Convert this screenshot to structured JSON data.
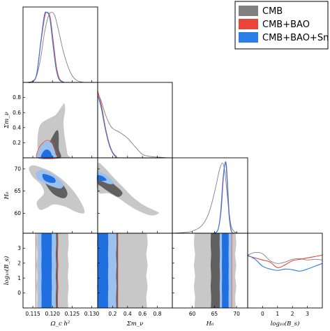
{
  "chart_data": {
    "type": "triangle-corner-plot",
    "parameters": [
      {
        "id": "omch2",
        "label": "Ω_c h²",
        "ticks": [
          "0.115",
          "0.120",
          "0.125",
          "0.130"
        ],
        "range": [
          0.1125,
          0.1315
        ]
      },
      {
        "id": "mnu",
        "label": "Σm_ν",
        "ticks": [
          "0.2",
          "0.4",
          "0.6",
          "0.8"
        ],
        "range": [
          0.0,
          1.0
        ]
      },
      {
        "id": "H0",
        "label": "H₀",
        "ticks": [
          "60",
          "65",
          "70"
        ],
        "range": [
          55.5,
          72.5
        ]
      },
      {
        "id": "logBs",
        "label": "log₁₀(B_s)",
        "ticks": [
          "0",
          "1",
          "2",
          "3"
        ],
        "range": [
          -1.0,
          4.0
        ]
      }
    ],
    "y_axes": [
      {
        "param": "mnu",
        "label": "Σm_ν",
        "ticks": [
          "0.2",
          "0.4",
          "0.6",
          "0.8"
        ],
        "range": [
          0.0,
          1.0
        ]
      },
      {
        "param": "H0",
        "label": "H₀",
        "ticks": [
          "60",
          "65",
          "70"
        ],
        "range": [
          55.5,
          72.5
        ]
      },
      {
        "param": "logBs",
        "label": "log₁₀(B_s)",
        "ticks": [
          "0",
          "1",
          "2",
          "3"
        ],
        "range": [
          -1.0,
          4.0
        ]
      }
    ],
    "series": [
      {
        "name": "CMB",
        "color": "#808080",
        "fill_68": "#606060",
        "fill_95": "#c8c8c8"
      },
      {
        "name": "CMB+BAO",
        "color": "#e8443a"
      },
      {
        "name": "CMB+BAO+Sn",
        "color": "#2b7ee6",
        "fill_68": "#1f6fe0",
        "fill_95": "#9cc1ee"
      }
    ],
    "marginals": {
      "omch2": {
        "CMB": [
          [
            0.1135,
            0.0
          ],
          [
            0.115,
            0.02
          ],
          [
            0.116,
            0.1
          ],
          [
            0.117,
            0.35
          ],
          [
            0.118,
            0.72
          ],
          [
            0.119,
            0.95
          ],
          [
            0.1198,
            1.0
          ],
          [
            0.1206,
            0.95
          ],
          [
            0.1215,
            0.75
          ],
          [
            0.1225,
            0.5
          ],
          [
            0.1235,
            0.3
          ],
          [
            0.1245,
            0.15
          ],
          [
            0.1255,
            0.06
          ],
          [
            0.1265,
            0.02
          ],
          [
            0.128,
            0.0
          ]
        ],
        "CMB+BAO": [
          [
            0.1135,
            0.0
          ],
          [
            0.115,
            0.01
          ],
          [
            0.116,
            0.12
          ],
          [
            0.117,
            0.55
          ],
          [
            0.118,
            0.93
          ],
          [
            0.1186,
            1.0
          ],
          [
            0.1194,
            0.93
          ],
          [
            0.1202,
            0.58
          ],
          [
            0.121,
            0.22
          ],
          [
            0.1218,
            0.05
          ],
          [
            0.123,
            0.0
          ]
        ],
        "CMB+BAO+Sn": [
          [
            0.1135,
            0.0
          ],
          [
            0.115,
            0.01
          ],
          [
            0.116,
            0.13
          ],
          [
            0.117,
            0.57
          ],
          [
            0.1179,
            0.95
          ],
          [
            0.1185,
            1.0
          ],
          [
            0.1193,
            0.92
          ],
          [
            0.1201,
            0.55
          ],
          [
            0.1209,
            0.2
          ],
          [
            0.1217,
            0.04
          ],
          [
            0.123,
            0.0
          ]
        ]
      },
      "mnu": {
        "CMB": [
          [
            0.0,
            0.93
          ],
          [
            0.05,
            0.8
          ],
          [
            0.1,
            0.63
          ],
          [
            0.15,
            0.5
          ],
          [
            0.2,
            0.42
          ],
          [
            0.3,
            0.36
          ],
          [
            0.4,
            0.28
          ],
          [
            0.5,
            0.16
          ],
          [
            0.6,
            0.05
          ],
          [
            0.7,
            0.02
          ],
          [
            0.8,
            0.01
          ],
          [
            0.95,
            0.0
          ]
        ],
        "CMB+BAO": [
          [
            0.0,
            0.95
          ],
          [
            0.05,
            0.75
          ],
          [
            0.1,
            0.45
          ],
          [
            0.15,
            0.22
          ],
          [
            0.2,
            0.08
          ],
          [
            0.25,
            0.02
          ],
          [
            0.3,
            0.0
          ],
          [
            0.95,
            0.0
          ]
        ],
        "CMB+BAO+Sn": [
          [
            0.0,
            0.9
          ],
          [
            0.05,
            0.7
          ],
          [
            0.1,
            0.42
          ],
          [
            0.15,
            0.2
          ],
          [
            0.2,
            0.07
          ],
          [
            0.25,
            0.01
          ],
          [
            0.3,
            0.0
          ],
          [
            0.95,
            0.0
          ]
        ]
      },
      "H0": {
        "CMB": [
          [
            55.5,
            0.0
          ],
          [
            58,
            0.01
          ],
          [
            60,
            0.03
          ],
          [
            62,
            0.1
          ],
          [
            63.5,
            0.25
          ],
          [
            64.5,
            0.45
          ],
          [
            65.5,
            0.72
          ],
          [
            66.2,
            0.92
          ],
          [
            66.8,
            1.0
          ],
          [
            67.3,
            0.9
          ],
          [
            67.8,
            0.6
          ],
          [
            68.3,
            0.3
          ],
          [
            68.8,
            0.1
          ],
          [
            69.5,
            0.02
          ],
          [
            70.5,
            0.0
          ]
        ],
        "CMB+BAO": [
          [
            64.8,
            0.0
          ],
          [
            65.8,
            0.05
          ],
          [
            66.4,
            0.3
          ],
          [
            66.9,
            0.75
          ],
          [
            67.3,
            0.97
          ],
          [
            67.6,
            0.98
          ],
          [
            67.9,
            0.7
          ],
          [
            68.3,
            0.25
          ],
          [
            68.8,
            0.03
          ],
          [
            69.5,
            0.0
          ]
        ],
        "CMB+BAO+Sn": [
          [
            64.8,
            0.0
          ],
          [
            65.8,
            0.05
          ],
          [
            66.5,
            0.32
          ],
          [
            67.0,
            0.78
          ],
          [
            67.4,
            1.0
          ],
          [
            67.7,
            0.97
          ],
          [
            68.0,
            0.65
          ],
          [
            68.4,
            0.22
          ],
          [
            68.9,
            0.02
          ],
          [
            69.5,
            0.0
          ]
        ]
      },
      "logBs": {
        "CMB": [
          [
            -1.0,
            0.76
          ],
          [
            -0.5,
            0.8
          ],
          [
            0.0,
            0.78
          ],
          [
            0.5,
            0.68
          ],
          [
            1.0,
            0.64
          ],
          [
            1.5,
            0.66
          ],
          [
            2.0,
            0.7
          ],
          [
            2.5,
            0.71
          ],
          [
            3.0,
            0.69
          ],
          [
            3.5,
            0.7
          ],
          [
            4.0,
            0.69
          ]
        ],
        "CMB+BAO": [
          [
            -1.0,
            0.75
          ],
          [
            -0.5,
            0.72
          ],
          [
            0.0,
            0.69
          ],
          [
            0.5,
            0.66
          ],
          [
            1.0,
            0.58
          ],
          [
            1.5,
            0.62
          ],
          [
            2.0,
            0.68
          ],
          [
            2.5,
            0.7
          ],
          [
            3.0,
            0.72
          ],
          [
            3.5,
            0.74
          ],
          [
            4.0,
            0.76
          ]
        ],
        "CMB+BAO+Sn": [
          [
            -1.0,
            0.76
          ],
          [
            -0.5,
            0.7
          ],
          [
            0.0,
            0.6
          ],
          [
            0.5,
            0.56
          ],
          [
            1.0,
            0.54
          ],
          [
            1.5,
            0.56
          ],
          [
            2.0,
            0.55
          ],
          [
            2.5,
            0.53
          ],
          [
            3.0,
            0.56
          ],
          [
            3.5,
            0.6
          ],
          [
            4.0,
            0.64
          ]
        ]
      }
    },
    "contours": [
      {
        "x": "omch2",
        "y": "mnu",
        "CMB_95": [
          [
            0.1165,
            0.0
          ],
          [
            0.1162,
            0.1
          ],
          [
            0.1162,
            0.25
          ],
          [
            0.1165,
            0.38
          ],
          [
            0.1172,
            0.46
          ],
          [
            0.119,
            0.52
          ],
          [
            0.1208,
            0.57
          ],
          [
            0.1222,
            0.67
          ],
          [
            0.123,
            0.72
          ],
          [
            0.1232,
            0.62
          ],
          [
            0.1228,
            0.48
          ],
          [
            0.123,
            0.32
          ],
          [
            0.1234,
            0.18
          ],
          [
            0.1238,
            0.05
          ],
          [
            0.124,
            0.0
          ]
        ],
        "CMB_68": [
          [
            0.1178,
            0.0
          ],
          [
            0.1182,
            0.07
          ],
          [
            0.1188,
            0.16
          ],
          [
            0.1198,
            0.26
          ],
          [
            0.1208,
            0.35
          ],
          [
            0.1214,
            0.36
          ],
          [
            0.1216,
            0.28
          ],
          [
            0.1216,
            0.12
          ],
          [
            0.122,
            0.0
          ]
        ],
        "SN_95": [
          [
            0.1163,
            0.0
          ],
          [
            0.1165,
            0.1
          ],
          [
            0.1172,
            0.17
          ],
          [
            0.1184,
            0.22
          ],
          [
            0.1197,
            0.2
          ],
          [
            0.1204,
            0.12
          ],
          [
            0.1208,
            0.05
          ],
          [
            0.1208,
            0.0
          ]
        ],
        "SN_68": [
          [
            0.1172,
            0.0
          ],
          [
            0.1175,
            0.07
          ],
          [
            0.1184,
            0.11
          ],
          [
            0.1193,
            0.09
          ],
          [
            0.1198,
            0.04
          ],
          [
            0.1198,
            0.0
          ]
        ],
        "BAO_95": [
          [
            0.1162,
            0.0
          ],
          [
            0.1164,
            0.11
          ],
          [
            0.1172,
            0.18
          ],
          [
            0.1185,
            0.23
          ],
          [
            0.1199,
            0.21
          ],
          [
            0.1206,
            0.12
          ],
          [
            0.1209,
            0.0
          ]
        ]
      },
      {
        "x": "omch2",
        "y": "H0",
        "CMB_95": [
          [
            0.114,
            70.0
          ],
          [
            0.115,
            70.8
          ],
          [
            0.1175,
            70.2
          ],
          [
            0.12,
            69.2
          ],
          [
            0.123,
            67.2
          ],
          [
            0.1258,
            64.5
          ],
          [
            0.1278,
            61.5
          ],
          [
            0.128,
            60.0
          ],
          [
            0.126,
            60.3
          ],
          [
            0.1232,
            61.5
          ],
          [
            0.1203,
            62.0
          ],
          [
            0.1185,
            61.2
          ],
          [
            0.1168,
            60.8
          ],
          [
            0.116,
            62.5
          ],
          [
            0.1178,
            64.5
          ],
          [
            0.117,
            66.5
          ],
          [
            0.115,
            68.2
          ]
        ],
        "CMB_68": [
          [
            0.1175,
            69.3
          ],
          [
            0.1193,
            68.7
          ],
          [
            0.1212,
            67.8
          ],
          [
            0.1228,
            66.3
          ],
          [
            0.1238,
            64.5
          ],
          [
            0.123,
            63.4
          ],
          [
            0.121,
            63.9
          ],
          [
            0.1195,
            65.0
          ],
          [
            0.118,
            67.0
          ],
          [
            0.1172,
            68.5
          ]
        ],
        "SN_95": [
          [
            0.1158,
            69.0
          ],
          [
            0.1172,
            69.8
          ],
          [
            0.1192,
            69.2
          ],
          [
            0.1212,
            68.0
          ],
          [
            0.1228,
            66.5
          ],
          [
            0.122,
            65.6
          ],
          [
            0.12,
            66.0
          ],
          [
            0.118,
            66.8
          ],
          [
            0.1162,
            67.8
          ]
        ],
        "SN_68": [
          [
            0.1175,
            68.8
          ],
          [
            0.119,
            68.6
          ],
          [
            0.1205,
            67.9
          ],
          [
            0.1207,
            67.0
          ],
          [
            0.1193,
            66.9
          ],
          [
            0.1178,
            67.6
          ]
        ]
      },
      {
        "x": "mnu",
        "y": "H0",
        "CMB_95": [
          [
            0.0,
            71.0
          ],
          [
            0.08,
            70.5
          ],
          [
            0.2,
            68.3
          ],
          [
            0.35,
            65.7
          ],
          [
            0.48,
            63.5
          ],
          [
            0.62,
            61.8
          ],
          [
            0.78,
            60.5
          ],
          [
            0.82,
            60.0
          ],
          [
            0.72,
            59.5
          ],
          [
            0.55,
            60.5
          ],
          [
            0.4,
            62.0
          ],
          [
            0.27,
            63.5
          ],
          [
            0.15,
            64.5
          ],
          [
            0.0,
            65.0
          ]
        ],
        "CMB_68": [
          [
            0.0,
            68.8
          ],
          [
            0.1,
            68.3
          ],
          [
            0.22,
            66.5
          ],
          [
            0.33,
            64.7
          ],
          [
            0.28,
            63.7
          ],
          [
            0.18,
            64.5
          ],
          [
            0.05,
            66.0
          ],
          [
            0.0,
            66.8
          ]
        ],
        "SN_95": [
          [
            0.0,
            69.3
          ],
          [
            0.08,
            69.0
          ],
          [
            0.16,
            68.0
          ],
          [
            0.22,
            66.8
          ],
          [
            0.15,
            66.6
          ],
          [
            0.05,
            67.3
          ],
          [
            0.0,
            67.6
          ]
        ],
        "SN_68": [
          [
            0.0,
            68.6
          ],
          [
            0.07,
            68.3
          ],
          [
            0.12,
            67.5
          ],
          [
            0.06,
            67.3
          ],
          [
            0.0,
            67.6
          ]
        ]
      },
      {
        "x": "omch2",
        "y": "logBs",
        "CMB_95_band": [
          0.116,
          0.124
        ],
        "CMB_68_band": [
          0.1179,
          0.1214
        ],
        "SN_95_band": [
          0.1163,
          0.1209
        ],
        "SN_68_band": [
          0.1172,
          0.1198
        ],
        "BAO_edge": [
          0.1158,
          0.1213
        ]
      },
      {
        "x": "mnu",
        "y": "logBs",
        "CMB_95_band": [
          0.0,
          0.66
        ],
        "CMB_68_band": [
          0.0,
          0.27
        ],
        "SN_95_band": [
          0.0,
          0.25
        ],
        "SN_68_band": [
          0.0,
          0.14
        ],
        "BAO_edge": [
          0.0,
          0.27
        ]
      },
      {
        "x": "H0",
        "y": "logBs",
        "CMB_95_band": [
          60.5,
          69.8
        ],
        "CMB_68_band": [
          64.2,
          68.5
        ],
        "SN_95_band": [
          66.2,
          68.8
        ],
        "SN_68_band": [
          66.7,
          68.2
        ],
        "BAO_edge": [
          66.3,
          68.9
        ]
      }
    ],
    "legend_position": "top-right",
    "grid": false
  }
}
